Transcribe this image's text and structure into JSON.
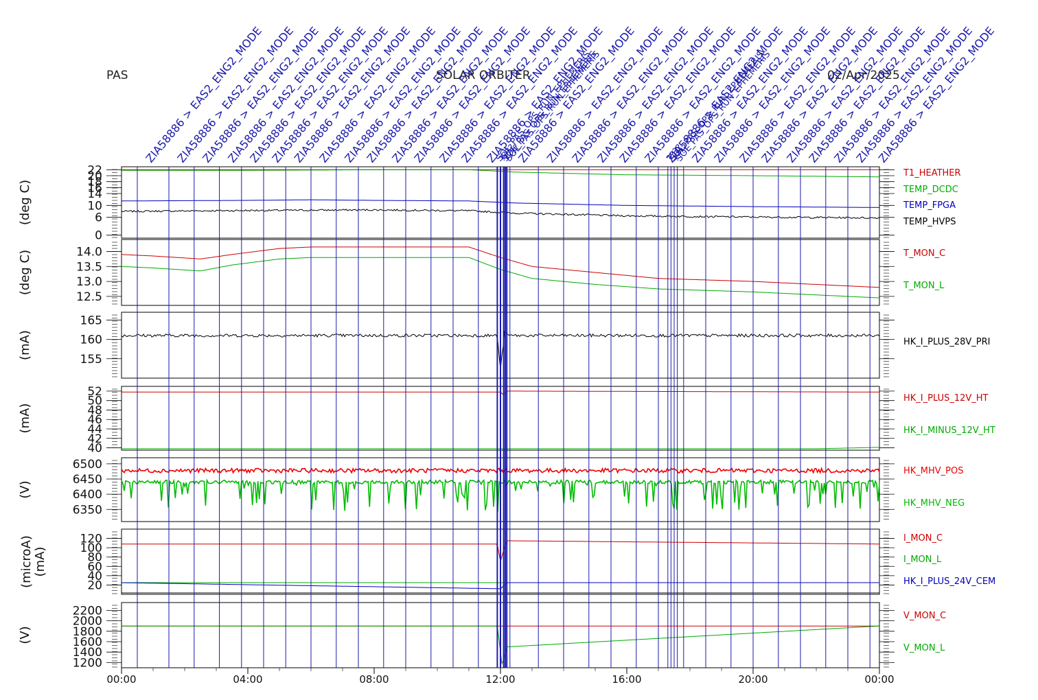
{
  "header": {
    "left": "PAS",
    "center": "SOLAR ORBITER",
    "right": "02/Apr/2025"
  },
  "event_labels": {
    "main_text": "ZIA58886 > EAS2_ENG2_MODE",
    "alt_text": "SOL_PAS_OPS_RUN_EPHEMERIS",
    "unknown_text": "????",
    "main_times_h": [
      0.5,
      1.5,
      2.3,
      3.1,
      3.8,
      4.5,
      5.2,
      6.0,
      6.8,
      7.5,
      8.3,
      9.0,
      9.8,
      10.5,
      11.3,
      12.3,
      13.2,
      14.0,
      14.8,
      15.5,
      16.3,
      17.0,
      17.8,
      18.5,
      19.3,
      20.0,
      20.8,
      21.5,
      22.3,
      23.0,
      23.7
    ],
    "cluster_times_h": [
      11.9,
      12.0,
      12.1,
      12.15,
      12.2,
      17.3,
      17.4,
      17.5,
      17.6
    ]
  },
  "chart_data": [
    {
      "type": "line",
      "ylabel": "(deg C)",
      "yticks": [
        0,
        6,
        10,
        14,
        16,
        18,
        20,
        22
      ],
      "ylim": [
        -1,
        23
      ],
      "x_range_h": [
        0,
        24
      ],
      "series": [
        {
          "name": "T1_HEATHER",
          "color": "#cc0000",
          "x": [
            0,
            24
          ],
          "y": [
            22,
            22
          ]
        },
        {
          "name": "TEMP_DCDC",
          "color": "#00aa00",
          "x": [
            0,
            4,
            8,
            11,
            12.5,
            16,
            20,
            24
          ],
          "y": [
            21.8,
            21.8,
            22.0,
            22.0,
            21.2,
            20.3,
            20.0,
            19.6
          ]
        },
        {
          "name": "TEMP_FPGA",
          "color": "#0000bb",
          "x": [
            0,
            4,
            6,
            8,
            11,
            12.5,
            16,
            20,
            24
          ],
          "y": [
            11.5,
            11.7,
            11.9,
            11.7,
            11.5,
            10.8,
            10.0,
            9.6,
            9.3
          ]
        },
        {
          "name": "TEMP_HVPS",
          "color": "#000000",
          "x": [
            0,
            4,
            8,
            11,
            12.5,
            16,
            20,
            24
          ],
          "y": [
            8.0,
            8.3,
            8.5,
            8.2,
            7.4,
            6.5,
            6.1,
            5.8
          ]
        }
      ]
    },
    {
      "type": "line",
      "ylabel": "(deg C)",
      "yticks": [
        12.5,
        13.0,
        13.5,
        14.0
      ],
      "ylim": [
        12.2,
        14.4
      ],
      "x_range_h": [
        0,
        24
      ],
      "series": [
        {
          "name": "T_MON_C",
          "color": "#cc0000",
          "x": [
            0,
            1,
            2.5,
            3.5,
            5,
            6,
            8,
            11,
            12,
            13,
            15,
            17,
            20,
            23,
            24
          ],
          "y": [
            13.9,
            13.85,
            13.75,
            13.9,
            14.1,
            14.15,
            14.15,
            14.15,
            13.8,
            13.5,
            13.3,
            13.1,
            13.0,
            12.85,
            12.8
          ]
        },
        {
          "name": "T_MON_L",
          "color": "#00aa00",
          "x": [
            0,
            1,
            2.5,
            3.5,
            5,
            6,
            8,
            11,
            12,
            13,
            15,
            17,
            20,
            23,
            24
          ],
          "y": [
            13.5,
            13.45,
            13.35,
            13.55,
            13.75,
            13.8,
            13.8,
            13.8,
            13.4,
            13.1,
            12.9,
            12.75,
            12.65,
            12.5,
            12.45
          ]
        }
      ]
    },
    {
      "type": "line",
      "ylabel": "(mA)",
      "yticks": [
        155,
        160,
        165
      ],
      "ylim": [
        150,
        167
      ],
      "x_range_h": [
        0,
        24
      ],
      "series": [
        {
          "name": "HK_I_PLUS_28V_PRI",
          "color": "#000000",
          "x": [
            0,
            11.9,
            12.0,
            12.05,
            12.15,
            12.2,
            24
          ],
          "y": [
            161,
            161,
            152,
            156,
            163,
            161,
            161
          ]
        }
      ]
    },
    {
      "type": "line",
      "ylabel": "(mA)",
      "yticks": [
        40,
        42,
        44,
        46,
        48,
        50,
        52
      ],
      "ylim": [
        39.5,
        53
      ],
      "x_range_h": [
        0,
        24
      ],
      "series": [
        {
          "name": "HK_I_PLUS_12V_HT",
          "color": "#cc0000",
          "x": [
            0,
            12,
            12.1,
            12.2,
            24
          ],
          "y": [
            51.8,
            51.8,
            51.2,
            52.0,
            51.8
          ]
        },
        {
          "name": "HK_I_MINUS_12V_HT",
          "color": "#00aa00",
          "x": [
            0,
            22,
            24
          ],
          "y": [
            39.8,
            39.8,
            40.1
          ]
        }
      ]
    },
    {
      "type": "line",
      "ylabel": "(V)",
      "yticks": [
        6350,
        6400,
        6450,
        6500
      ],
      "ylim": [
        6310,
        6520
      ],
      "x_range_h": [
        0,
        24
      ],
      "series": [
        {
          "name": "HK_MHV_POS",
          "color": "#ee0000",
          "x": [
            0,
            24
          ],
          "y": [
            6475,
            6475
          ]
        },
        {
          "name": "HK_MHV_NEG",
          "color": "#00bb00",
          "x": [
            0,
            24
          ],
          "y": [
            6440,
            6440
          ]
        }
      ]
    },
    {
      "type": "line",
      "ylabel": "(microA)",
      "ylabel2": "(mA)",
      "yticks": [
        20,
        40,
        60,
        80,
        100,
        120
      ],
      "ylim": [
        0,
        140
      ],
      "x_range_h": [
        0,
        24
      ],
      "series": [
        {
          "name": "I_MON_C",
          "color": "#cc0000",
          "x": [
            0,
            11.9,
            12.0,
            12.1,
            12.2,
            24
          ],
          "y": [
            108,
            108,
            70,
            95,
            115,
            108
          ]
        },
        {
          "name": "I_MON_L",
          "color": "#00aa00",
          "x": [
            0,
            24
          ],
          "y": [
            25,
            25
          ]
        },
        {
          "name": "HK_I_PLUS_24V_CEM",
          "color": "#0000bb",
          "x": [
            0,
            12.0,
            12.1,
            12.2,
            24
          ],
          "y": [
            25,
            12,
            18,
            25,
            25
          ]
        },
        {
          "name": "",
          "color": "#000000",
          "x": [
            0,
            24
          ],
          "y": [
            3,
            3
          ]
        }
      ]
    },
    {
      "type": "line",
      "ylabel": "(V)",
      "yticks": [
        1200,
        1400,
        1600,
        1800,
        2000,
        2200
      ],
      "ylim": [
        1100,
        2350
      ],
      "x_range_h": [
        0,
        24
      ],
      "series": [
        {
          "name": "V_MON_C",
          "color": "#cc0000",
          "x": [
            0,
            24
          ],
          "y": [
            1900,
            1900
          ]
        },
        {
          "name": "V_MON_L",
          "color": "#00aa00",
          "x": [
            0,
            11.9,
            12.05,
            12.2,
            24
          ],
          "y": [
            1900,
            1900,
            1150,
            1500,
            1900
          ]
        }
      ]
    }
  ],
  "xaxis": {
    "ticks_h": [
      0,
      4,
      8,
      12,
      16,
      20,
      24
    ],
    "tick_labels": [
      "00:00",
      "04:00",
      "08:00",
      "12:00",
      "16:00",
      "20:00",
      "00:00"
    ]
  }
}
